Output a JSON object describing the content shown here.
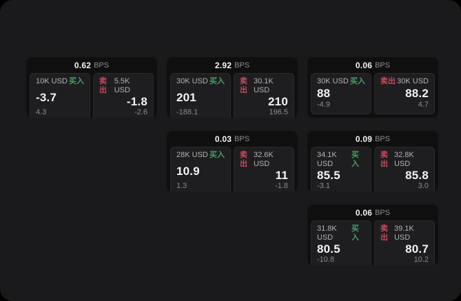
{
  "labels": {
    "buy": "买入",
    "sell": "卖出",
    "bps_unit": "BPS"
  },
  "colors": {
    "buy": "#4a9e66",
    "sell": "#c9485e",
    "window_bg": "#1a1a1c",
    "card_bg": "#0f0f10",
    "pane_bg": "#1e1e20"
  },
  "cards": [
    {
      "bps": "0.62",
      "grid": {
        "row": 1,
        "col": 1
      },
      "buy": {
        "amount": "10K USD",
        "value": "-3.7",
        "sub": "4.3"
      },
      "sell": {
        "amount": "5.5K USD",
        "value": "-1.8",
        "sub": "-2.6"
      }
    },
    {
      "bps": "2.92",
      "grid": {
        "row": 1,
        "col": 2
      },
      "buy": {
        "amount": "30K USD",
        "value": "201",
        "sub": "-188.1"
      },
      "sell": {
        "amount": "30.1K USD",
        "value": "210",
        "sub": "196.5"
      }
    },
    {
      "bps": "0.06",
      "grid": {
        "row": 1,
        "col": 3
      },
      "buy": {
        "amount": "30K USD",
        "value": "88",
        "sub": "-4.9"
      },
      "sell": {
        "amount": "30K USD",
        "value": "88.2",
        "sub": "4.7"
      }
    },
    {
      "bps": "0.03",
      "grid": {
        "row": 2,
        "col": 2
      },
      "buy": {
        "amount": "28K USD",
        "value": "10.9",
        "sub": "1.3"
      },
      "sell": {
        "amount": "32.6K USD",
        "value": "11",
        "sub": "-1.8"
      }
    },
    {
      "bps": "0.09",
      "grid": {
        "row": 2,
        "col": 3
      },
      "buy": {
        "amount": "34.1K USD",
        "value": "85.5",
        "sub": "-3.1"
      },
      "sell": {
        "amount": "32.8K USD",
        "value": "85.8",
        "sub": "3.0"
      }
    },
    {
      "bps": "0.06",
      "grid": {
        "row": 3,
        "col": 3
      },
      "buy": {
        "amount": "31.8K USD",
        "value": "80.5",
        "sub": "-10.8"
      },
      "sell": {
        "amount": "39.1K USD",
        "value": "80.7",
        "sub": "10.2"
      }
    }
  ]
}
